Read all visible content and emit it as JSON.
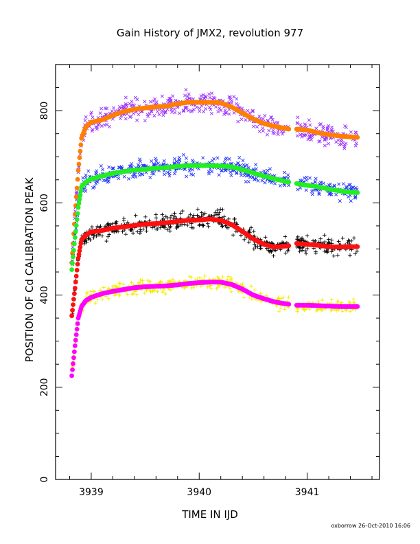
{
  "chart_data": {
    "type": "scatter",
    "title": "Gain History of JMX2, revolution 977",
    "xlabel": "TIME IN IJD",
    "ylabel": "POSITION OF Cd CALIBRATION PEAK",
    "xlim": [
      3938.67,
      3941.67
    ],
    "ylim": [
      0,
      900
    ],
    "x_ticks": [
      3939,
      3940,
      3941
    ],
    "y_ticks": [
      0,
      200,
      400,
      600,
      800
    ],
    "grid": false,
    "legend": "none",
    "gap": [
      3940.83,
      3940.9
    ],
    "series": [
      {
        "color": "#ff7f00",
        "scatter_color": "#9b30ff",
        "scatter_marker": "x",
        "scatter_spread": 22,
        "x": [
          3938.82,
          3938.85,
          3938.88,
          3938.91,
          3938.95,
          3939.0,
          3939.1,
          3939.2,
          3939.3,
          3939.4,
          3939.5,
          3939.6,
          3939.7,
          3939.8,
          3939.9,
          3940.0,
          3940.1,
          3940.2,
          3940.3,
          3940.4,
          3940.5,
          3940.6,
          3940.7,
          3940.83,
          3940.9,
          3941.0,
          3941.1,
          3941.2,
          3941.3,
          3941.4,
          3941.47
        ],
        "y": [
          470,
          575,
          670,
          740,
          765,
          775,
          780,
          790,
          798,
          803,
          806,
          808,
          810,
          815,
          818,
          818,
          818,
          817,
          808,
          795,
          782,
          772,
          766,
          760,
          760,
          758,
          752,
          748,
          745,
          743,
          742
        ]
      },
      {
        "color": "#22ee22",
        "scatter_color": "#2233ff",
        "scatter_marker": "x",
        "scatter_spread": 18,
        "x": [
          3938.82,
          3938.85,
          3938.88,
          3938.91,
          3938.95,
          3939.0,
          3939.1,
          3939.2,
          3939.3,
          3939.4,
          3939.5,
          3939.6,
          3939.7,
          3939.8,
          3939.9,
          3940.0,
          3940.1,
          3940.2,
          3940.3,
          3940.4,
          3940.5,
          3940.6,
          3940.7,
          3940.83,
          3940.9,
          3941.0,
          3941.1,
          3941.2,
          3941.3,
          3941.4,
          3941.47
        ],
        "y": [
          455,
          525,
          590,
          635,
          645,
          652,
          658,
          664,
          668,
          671,
          673,
          675,
          677,
          679,
          681,
          681,
          681,
          680,
          678,
          672,
          665,
          658,
          652,
          645,
          642,
          638,
          635,
          630,
          626,
          623,
          622
        ]
      },
      {
        "color": "#ff1111",
        "scatter_color": "#000000",
        "scatter_marker": "+",
        "scatter_spread": 18,
        "x": [
          3938.82,
          3938.85,
          3938.88,
          3938.91,
          3938.95,
          3939.0,
          3939.1,
          3939.2,
          3939.3,
          3939.4,
          3939.5,
          3939.6,
          3939.7,
          3939.8,
          3939.9,
          3940.0,
          3940.1,
          3940.2,
          3940.3,
          3940.4,
          3940.5,
          3940.6,
          3940.7,
          3940.83,
          3940.9,
          3941.0,
          3941.1,
          3941.2,
          3941.3,
          3941.4,
          3941.47
        ],
        "y": [
          355,
          415,
          480,
          520,
          530,
          537,
          540,
          545,
          548,
          551,
          554,
          555,
          557,
          560,
          562,
          563,
          565,
          562,
          553,
          538,
          522,
          510,
          504,
          507,
          512,
          510,
          508,
          505,
          504,
          505,
          505
        ]
      },
      {
        "color": "#ff00ff",
        "scatter_color": "#eeee00",
        "scatter_marker": "+",
        "scatter_spread": 13,
        "x": [
          3938.82,
          3938.85,
          3938.88,
          3938.91,
          3938.95,
          3939.0,
          3939.1,
          3939.2,
          3939.3,
          3939.4,
          3939.5,
          3939.6,
          3939.7,
          3939.8,
          3939.9,
          3940.0,
          3940.1,
          3940.2,
          3940.3,
          3940.4,
          3940.5,
          3940.6,
          3940.7,
          3940.83,
          3940.9,
          3941.0,
          3941.1,
          3941.2,
          3941.3,
          3941.4,
          3941.47
        ],
        "y": [
          225,
          290,
          350,
          375,
          388,
          395,
          403,
          408,
          412,
          416,
          418,
          419,
          420,
          422,
          425,
          427,
          428,
          428,
          423,
          413,
          400,
          392,
          385,
          380,
          378,
          378,
          377,
          376,
          375,
          375,
          375
        ]
      }
    ]
  },
  "footer": {
    "credit": "oxborrow 26-Oct-2010 16:06"
  }
}
